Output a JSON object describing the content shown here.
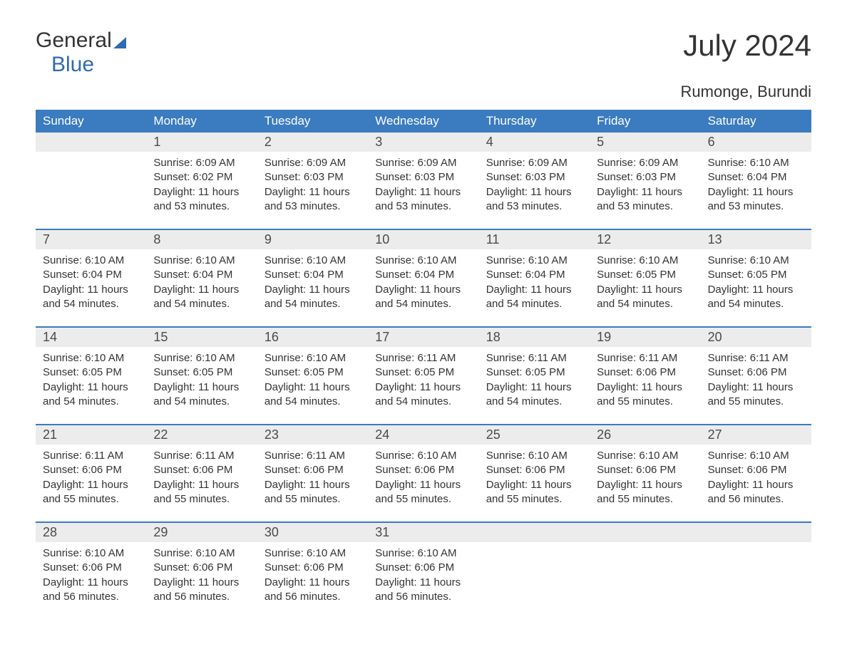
{
  "logo": {
    "line1": "General",
    "line2": "Blue"
  },
  "title": "July 2024",
  "location": "Rumonge, Burundi",
  "colors": {
    "header_bg": "#3b7bbf",
    "header_text": "#ffffff",
    "daynum_bg": "#ececec",
    "text": "#333333",
    "logo_blue": "#2e6baf"
  },
  "day_headers": [
    "Sunday",
    "Monday",
    "Tuesday",
    "Wednesday",
    "Thursday",
    "Friday",
    "Saturday"
  ],
  "weeks": [
    [
      {
        "day": "",
        "lines": []
      },
      {
        "day": "1",
        "lines": [
          "Sunrise: 6:09 AM",
          "Sunset: 6:02 PM",
          "Daylight: 11 hours and 53 minutes."
        ]
      },
      {
        "day": "2",
        "lines": [
          "Sunrise: 6:09 AM",
          "Sunset: 6:03 PM",
          "Daylight: 11 hours and 53 minutes."
        ]
      },
      {
        "day": "3",
        "lines": [
          "Sunrise: 6:09 AM",
          "Sunset: 6:03 PM",
          "Daylight: 11 hours and 53 minutes."
        ]
      },
      {
        "day": "4",
        "lines": [
          "Sunrise: 6:09 AM",
          "Sunset: 6:03 PM",
          "Daylight: 11 hours and 53 minutes."
        ]
      },
      {
        "day": "5",
        "lines": [
          "Sunrise: 6:09 AM",
          "Sunset: 6:03 PM",
          "Daylight: 11 hours and 53 minutes."
        ]
      },
      {
        "day": "6",
        "lines": [
          "Sunrise: 6:10 AM",
          "Sunset: 6:04 PM",
          "Daylight: 11 hours and 53 minutes."
        ]
      }
    ],
    [
      {
        "day": "7",
        "lines": [
          "Sunrise: 6:10 AM",
          "Sunset: 6:04 PM",
          "Daylight: 11 hours and 54 minutes."
        ]
      },
      {
        "day": "8",
        "lines": [
          "Sunrise: 6:10 AM",
          "Sunset: 6:04 PM",
          "Daylight: 11 hours and 54 minutes."
        ]
      },
      {
        "day": "9",
        "lines": [
          "Sunrise: 6:10 AM",
          "Sunset: 6:04 PM",
          "Daylight: 11 hours and 54 minutes."
        ]
      },
      {
        "day": "10",
        "lines": [
          "Sunrise: 6:10 AM",
          "Sunset: 6:04 PM",
          "Daylight: 11 hours and 54 minutes."
        ]
      },
      {
        "day": "11",
        "lines": [
          "Sunrise: 6:10 AM",
          "Sunset: 6:04 PM",
          "Daylight: 11 hours and 54 minutes."
        ]
      },
      {
        "day": "12",
        "lines": [
          "Sunrise: 6:10 AM",
          "Sunset: 6:05 PM",
          "Daylight: 11 hours and 54 minutes."
        ]
      },
      {
        "day": "13",
        "lines": [
          "Sunrise: 6:10 AM",
          "Sunset: 6:05 PM",
          "Daylight: 11 hours and 54 minutes."
        ]
      }
    ],
    [
      {
        "day": "14",
        "lines": [
          "Sunrise: 6:10 AM",
          "Sunset: 6:05 PM",
          "Daylight: 11 hours and 54 minutes."
        ]
      },
      {
        "day": "15",
        "lines": [
          "Sunrise: 6:10 AM",
          "Sunset: 6:05 PM",
          "Daylight: 11 hours and 54 minutes."
        ]
      },
      {
        "day": "16",
        "lines": [
          "Sunrise: 6:10 AM",
          "Sunset: 6:05 PM",
          "Daylight: 11 hours and 54 minutes."
        ]
      },
      {
        "day": "17",
        "lines": [
          "Sunrise: 6:11 AM",
          "Sunset: 6:05 PM",
          "Daylight: 11 hours and 54 minutes."
        ]
      },
      {
        "day": "18",
        "lines": [
          "Sunrise: 6:11 AM",
          "Sunset: 6:05 PM",
          "Daylight: 11 hours and 54 minutes."
        ]
      },
      {
        "day": "19",
        "lines": [
          "Sunrise: 6:11 AM",
          "Sunset: 6:06 PM",
          "Daylight: 11 hours and 55 minutes."
        ]
      },
      {
        "day": "20",
        "lines": [
          "Sunrise: 6:11 AM",
          "Sunset: 6:06 PM",
          "Daylight: 11 hours and 55 minutes."
        ]
      }
    ],
    [
      {
        "day": "21",
        "lines": [
          "Sunrise: 6:11 AM",
          "Sunset: 6:06 PM",
          "Daylight: 11 hours and 55 minutes."
        ]
      },
      {
        "day": "22",
        "lines": [
          "Sunrise: 6:11 AM",
          "Sunset: 6:06 PM",
          "Daylight: 11 hours and 55 minutes."
        ]
      },
      {
        "day": "23",
        "lines": [
          "Sunrise: 6:11 AM",
          "Sunset: 6:06 PM",
          "Daylight: 11 hours and 55 minutes."
        ]
      },
      {
        "day": "24",
        "lines": [
          "Sunrise: 6:10 AM",
          "Sunset: 6:06 PM",
          "Daylight: 11 hours and 55 minutes."
        ]
      },
      {
        "day": "25",
        "lines": [
          "Sunrise: 6:10 AM",
          "Sunset: 6:06 PM",
          "Daylight: 11 hours and 55 minutes."
        ]
      },
      {
        "day": "26",
        "lines": [
          "Sunrise: 6:10 AM",
          "Sunset: 6:06 PM",
          "Daylight: 11 hours and 55 minutes."
        ]
      },
      {
        "day": "27",
        "lines": [
          "Sunrise: 6:10 AM",
          "Sunset: 6:06 PM",
          "Daylight: 11 hours and 56 minutes."
        ]
      }
    ],
    [
      {
        "day": "28",
        "lines": [
          "Sunrise: 6:10 AM",
          "Sunset: 6:06 PM",
          "Daylight: 11 hours and 56 minutes."
        ]
      },
      {
        "day": "29",
        "lines": [
          "Sunrise: 6:10 AM",
          "Sunset: 6:06 PM",
          "Daylight: 11 hours and 56 minutes."
        ]
      },
      {
        "day": "30",
        "lines": [
          "Sunrise: 6:10 AM",
          "Sunset: 6:06 PM",
          "Daylight: 11 hours and 56 minutes."
        ]
      },
      {
        "day": "31",
        "lines": [
          "Sunrise: 6:10 AM",
          "Sunset: 6:06 PM",
          "Daylight: 11 hours and 56 minutes."
        ]
      },
      {
        "day": "",
        "lines": []
      },
      {
        "day": "",
        "lines": []
      },
      {
        "day": "",
        "lines": []
      }
    ]
  ]
}
